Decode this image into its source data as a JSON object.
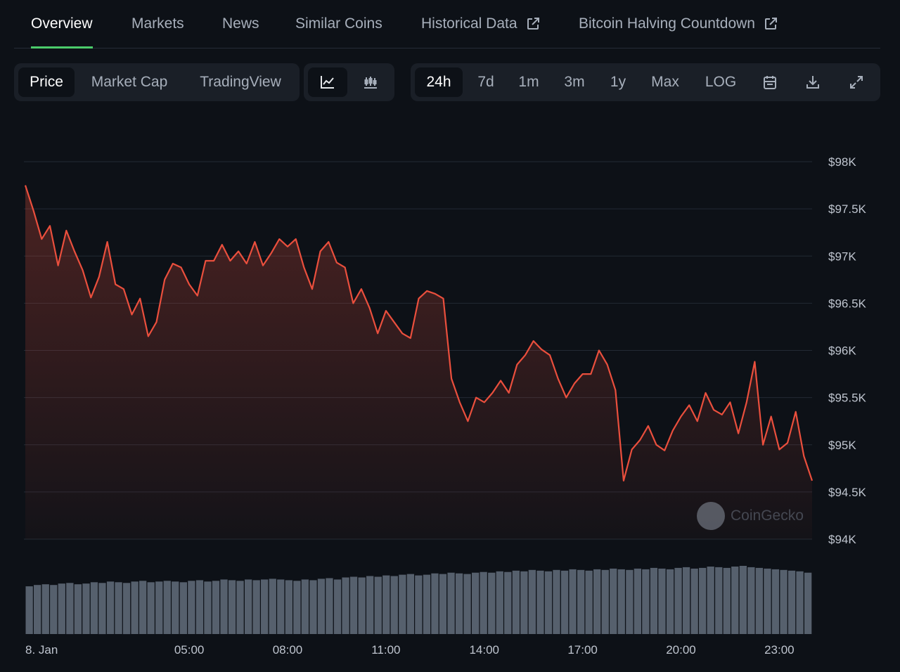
{
  "nav": {
    "tabs": [
      {
        "label": "Overview",
        "active": true,
        "external": false
      },
      {
        "label": "Markets",
        "active": false,
        "external": false
      },
      {
        "label": "News",
        "active": false,
        "external": false
      },
      {
        "label": "Similar Coins",
        "active": false,
        "external": false
      },
      {
        "label": "Historical Data",
        "active": false,
        "external": true
      },
      {
        "label": "Bitcoin Halving Countdown",
        "active": false,
        "external": true
      }
    ]
  },
  "toolbar": {
    "view_tabs": [
      {
        "label": "Price",
        "active": true
      },
      {
        "label": "Market Cap",
        "active": false
      },
      {
        "label": "TradingView",
        "active": false
      }
    ],
    "chart_type_buttons": [
      {
        "icon": "line-chart-icon",
        "active": true
      },
      {
        "icon": "candlestick-chart-icon",
        "active": false
      }
    ],
    "range_buttons": [
      {
        "label": "24h",
        "active": true
      },
      {
        "label": "7d",
        "active": false
      },
      {
        "label": "1m",
        "active": false
      },
      {
        "label": "3m",
        "active": false
      },
      {
        "label": "1y",
        "active": false
      },
      {
        "label": "Max",
        "active": false
      },
      {
        "label": "LOG",
        "active": false
      }
    ],
    "action_icons": [
      "calendar-icon",
      "download-icon",
      "expand-icon"
    ]
  },
  "watermark": {
    "text": "CoinGecko"
  },
  "colors": {
    "line": "#ea4f3d",
    "volume": "#56606d",
    "accent": "#4bcc6b"
  },
  "chart_data": {
    "type": "line",
    "title": "",
    "xlabel": "",
    "ylabel": "",
    "ylim": [
      94000,
      98000
    ],
    "y_ticks": [
      98000,
      97500,
      97000,
      96500,
      96000,
      95500,
      95000,
      94500,
      94000
    ],
    "y_tick_labels": [
      "$98K",
      "$97.5K",
      "$97K",
      "$96.5K",
      "$96K",
      "$95.5K",
      "$95K",
      "$94.5K",
      "$94K"
    ],
    "x_range": [
      "00:00",
      "24:00"
    ],
    "x_ticks": [
      "00:00",
      "05:00",
      "08:00",
      "11:00",
      "14:00",
      "17:00",
      "20:00",
      "23:00"
    ],
    "x_tick_labels": [
      "8. Jan",
      "05:00",
      "08:00",
      "11:00",
      "14:00",
      "17:00",
      "20:00",
      "23:00"
    ],
    "grid": true,
    "series": [
      {
        "x": [
          "00:00",
          "00:15",
          "00:30",
          "00:45",
          "01:00",
          "01:15",
          "01:30",
          "01:45",
          "02:00",
          "02:15",
          "02:30",
          "02:45",
          "03:00",
          "03:15",
          "03:30",
          "03:45",
          "04:00",
          "04:15",
          "04:30",
          "04:45",
          "05:00",
          "05:15",
          "05:30",
          "05:45",
          "06:00",
          "06:15",
          "06:30",
          "06:45",
          "07:00",
          "07:15",
          "07:30",
          "07:45",
          "08:00",
          "08:15",
          "08:30",
          "08:45",
          "09:00",
          "09:15",
          "09:30",
          "09:45",
          "10:00",
          "10:15",
          "10:30",
          "10:45",
          "11:00",
          "11:15",
          "11:30",
          "11:45",
          "12:00",
          "12:15",
          "12:30",
          "12:45",
          "13:00",
          "13:15",
          "13:30",
          "13:45",
          "14:00",
          "14:15",
          "14:30",
          "14:45",
          "15:00",
          "15:15",
          "15:30",
          "15:45",
          "16:00",
          "16:15",
          "16:30",
          "16:45",
          "17:00",
          "17:15",
          "17:30",
          "17:45",
          "18:00",
          "18:15",
          "18:30",
          "18:45",
          "19:00",
          "19:15",
          "19:30",
          "19:45",
          "20:00",
          "20:15",
          "20:30",
          "20:45",
          "21:00",
          "21:15",
          "21:30",
          "21:45",
          "22:00",
          "22:15",
          "22:30",
          "22:45",
          "23:00",
          "23:15",
          "23:30",
          "23:45",
          "24:00"
        ],
        "values": [
          97750,
          97480,
          97180,
          97320,
          96900,
          97270,
          97050,
          96850,
          96560,
          96780,
          97150,
          96700,
          96650,
          96380,
          96550,
          96150,
          96300,
          96750,
          96920,
          96880,
          96700,
          96580,
          96950,
          96950,
          97120,
          96950,
          97050,
          96920,
          97150,
          96900,
          97030,
          97180,
          97100,
          97180,
          96880,
          96650,
          97050,
          97150,
          96930,
          96880,
          96500,
          96650,
          96450,
          96180,
          96420,
          96300,
          96180,
          96130,
          96550,
          96630,
          96600,
          96550,
          95700,
          95450,
          95250,
          95500,
          95450,
          95550,
          95680,
          95550,
          95850,
          95950,
          96100,
          96010,
          95950,
          95700,
          95500,
          95650,
          95750,
          95750,
          96000,
          95850,
          95580,
          94620,
          94950,
          95050,
          95200,
          95000,
          94940,
          95150,
          95300,
          95420,
          95250,
          95550,
          95370,
          95320,
          95450,
          95120,
          95450,
          95880,
          95000,
          95300,
          94950,
          95020,
          95350,
          94880,
          94620
        ]
      }
    ],
    "volume": {
      "note_levels": "relative",
      "values": [
        0.7,
        0.72,
        0.73,
        0.72,
        0.74,
        0.75,
        0.73,
        0.74,
        0.76,
        0.75,
        0.77,
        0.76,
        0.75,
        0.77,
        0.78,
        0.76,
        0.77,
        0.78,
        0.77,
        0.76,
        0.78,
        0.79,
        0.77,
        0.78,
        0.8,
        0.79,
        0.78,
        0.8,
        0.79,
        0.8,
        0.81,
        0.8,
        0.79,
        0.78,
        0.8,
        0.79,
        0.81,
        0.82,
        0.8,
        0.83,
        0.84,
        0.83,
        0.85,
        0.84,
        0.86,
        0.85,
        0.87,
        0.88,
        0.86,
        0.87,
        0.89,
        0.88,
        0.9,
        0.89,
        0.88,
        0.9,
        0.91,
        0.9,
        0.92,
        0.91,
        0.93,
        0.92,
        0.94,
        0.93,
        0.92,
        0.94,
        0.93,
        0.95,
        0.94,
        0.93,
        0.95,
        0.94,
        0.96,
        0.95,
        0.94,
        0.96,
        0.95,
        0.97,
        0.96,
        0.95,
        0.97,
        0.98,
        0.96,
        0.97,
        0.99,
        0.98,
        0.97,
        0.99,
        1.0,
        0.98,
        0.97,
        0.96,
        0.95,
        0.94,
        0.93,
        0.92,
        0.9
      ]
    }
  }
}
